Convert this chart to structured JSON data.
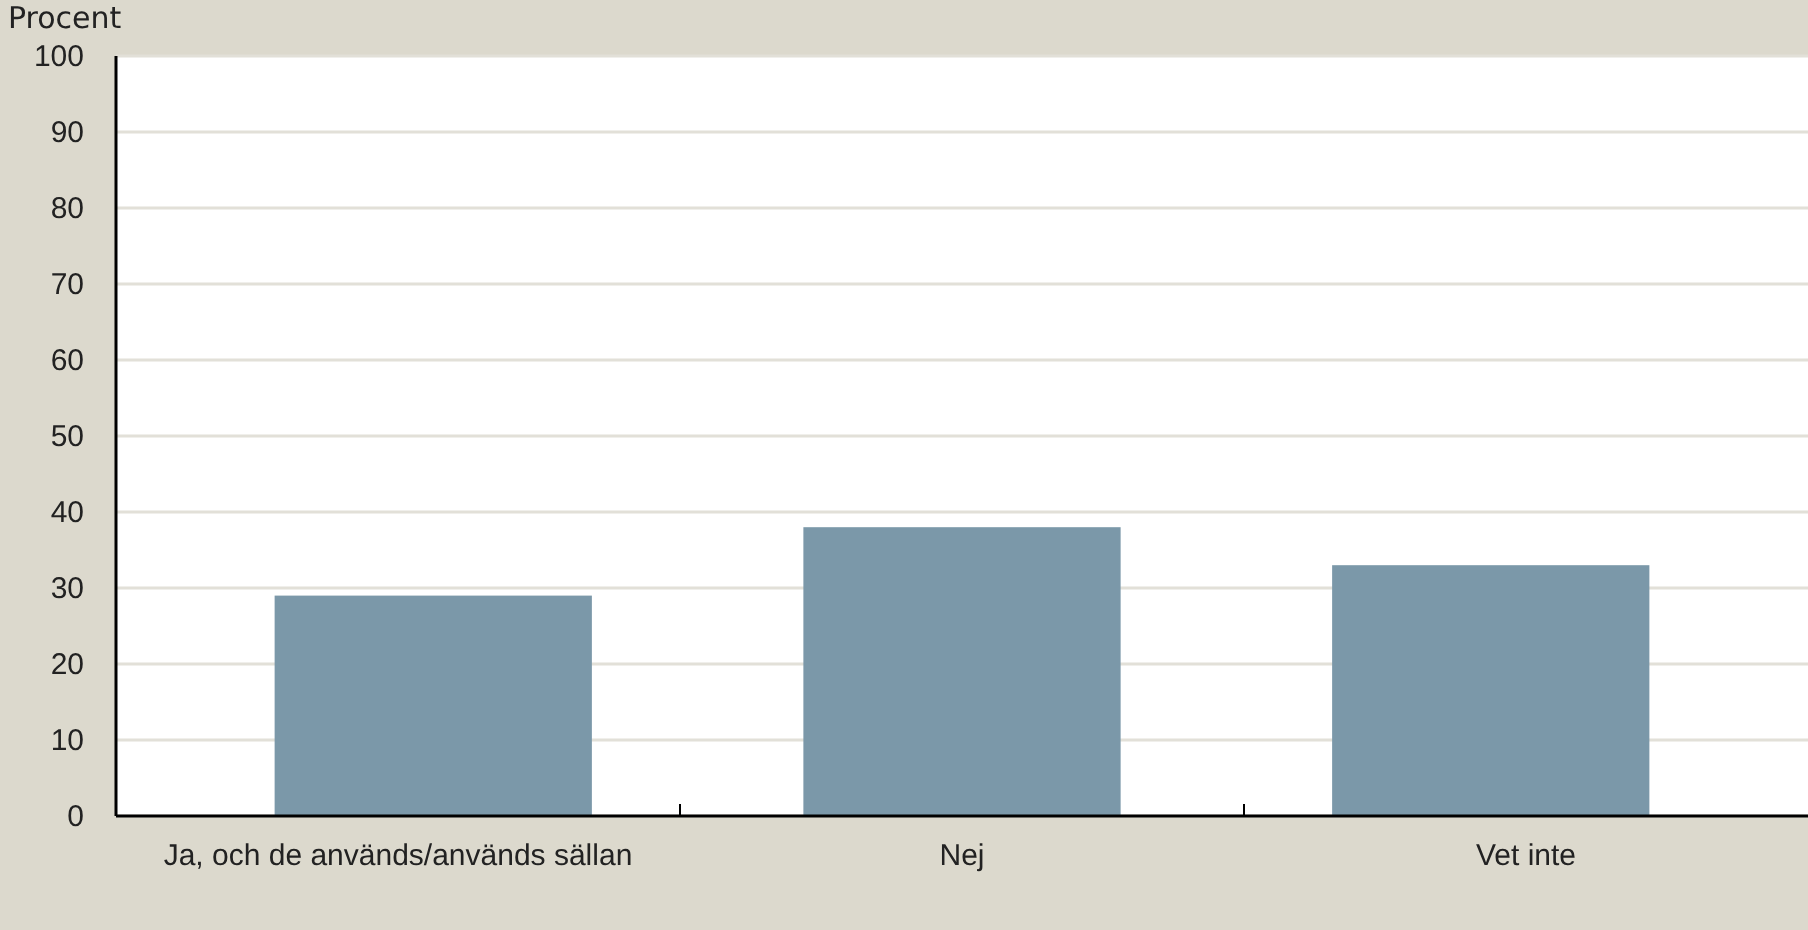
{
  "chart_data": {
    "type": "bar",
    "ylabel": "Procent",
    "categories": [
      "Ja, och de används/används sällan",
      "Nej",
      "Vet inte"
    ],
    "values": [
      29,
      38,
      33
    ],
    "color": "#7b98a9",
    "ylim": [
      0,
      100
    ],
    "yticks": [
      0,
      10,
      20,
      30,
      40,
      50,
      60,
      70,
      80,
      90,
      100
    ],
    "grid": "y"
  }
}
